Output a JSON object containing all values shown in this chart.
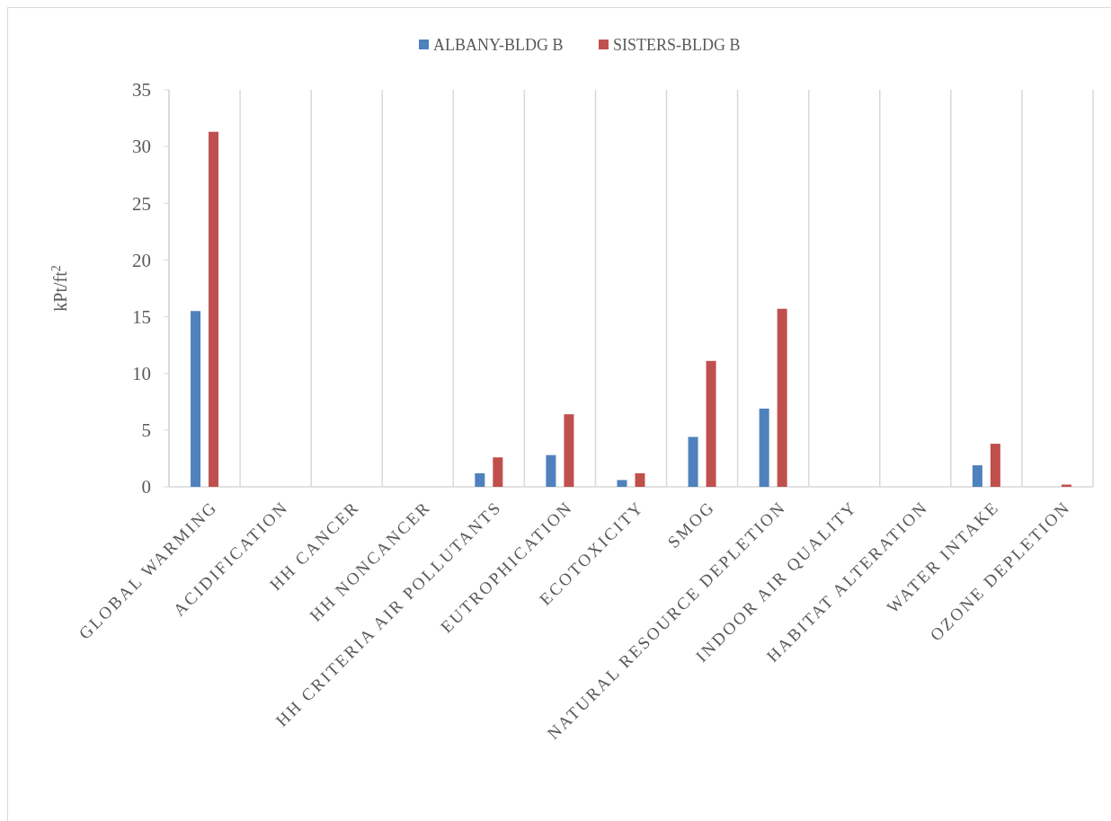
{
  "chart_data": {
    "type": "bar",
    "ylabel": "kPt/ft$^{2}$",
    "categories": [
      "GLOBAL WARMING",
      "ACIDIFICATION",
      "HH CANCER",
      "HH NONCANCER",
      "HH CRITERIA AIR POLLUTANTS",
      "EUTROPHICATION",
      "ECOTOXICITY",
      "SMOG",
      "NATURAL RESOURCE DEPLETION",
      "INDOOR AIR QUALITY",
      "HABITAT ALTERATION",
      "WATER INTAKE",
      "OZONE DEPLETION"
    ],
    "series": [
      {
        "name": "ALBANY-BLDG B",
        "color": "#4f81bd",
        "values": [
          15.5,
          0,
          0,
          0,
          1.2,
          2.8,
          0.6,
          4.4,
          6.9,
          0,
          0,
          1.9,
          0
        ]
      },
      {
        "name": "SISTERS-BLDG B",
        "color": "#c0504d",
        "values": [
          31.3,
          0,
          0,
          0,
          2.6,
          6.4,
          1.2,
          11.1,
          15.7,
          0,
          0,
          3.8,
          0.2
        ]
      }
    ],
    "ylim": [
      0,
      35
    ],
    "yticks": [
      0,
      5,
      10,
      15,
      20,
      25,
      30,
      35
    ],
    "grid": "x",
    "legend": "top"
  }
}
